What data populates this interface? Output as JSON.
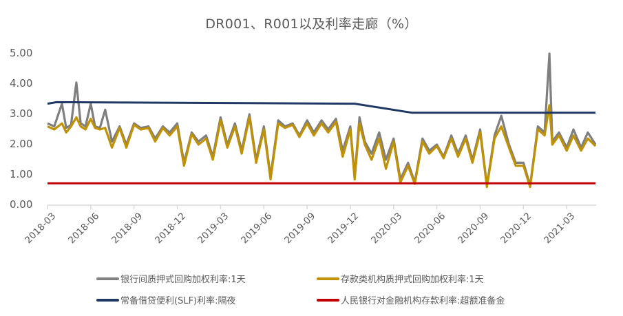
{
  "chart_data": {
    "type": "line",
    "title": "DR001、R001以及利率走廊（%）",
    "xlabel": "",
    "ylabel": "",
    "ylim": [
      0,
      5
    ],
    "yticks": [
      "0.00",
      "1.00",
      "2.00",
      "3.00",
      "4.00",
      "5.00"
    ],
    "xticks": [
      "2018-03",
      "2018-06",
      "2018-09",
      "2018-12",
      "2019-03",
      "2019-06",
      "2019-09",
      "2019-12",
      "2020-03",
      "2020-06",
      "2020-09",
      "2020-12",
      "2021-03"
    ],
    "grid": false,
    "legend_position": "bottom",
    "x_range": [
      "2018-03",
      "2021-05"
    ],
    "series": [
      {
        "name": "银行间质押式回购加权利率:1天",
        "color": "#7f7f7f",
        "x": [
          "2018-03",
          "2018-03-15",
          "2018-04",
          "2018-04-10",
          "2018-04-20",
          "2018-05",
          "2018-05-10",
          "2018-05-20",
          "2018-06",
          "2018-06-10",
          "2018-06-20",
          "2018-07",
          "2018-07-15",
          "2018-08",
          "2018-08-15",
          "2018-09",
          "2018-09-15",
          "2018-10",
          "2018-10-15",
          "2018-11",
          "2018-11-15",
          "2018-12",
          "2018-12-15",
          "2019-01",
          "2019-01-15",
          "2019-02",
          "2019-02-15",
          "2019-03",
          "2019-03-15",
          "2019-04",
          "2019-04-15",
          "2019-05",
          "2019-05-15",
          "2019-06",
          "2019-06-15",
          "2019-07",
          "2019-07-15",
          "2019-08",
          "2019-08-15",
          "2019-09",
          "2019-09-15",
          "2019-10",
          "2019-10-15",
          "2019-11",
          "2019-11-15",
          "2019-12",
          "2019-12-10",
          "2019-12-20",
          "2020-01",
          "2020-01-15",
          "2020-02",
          "2020-02-15",
          "2020-03",
          "2020-03-15",
          "2020-04",
          "2020-04-15",
          "2020-05",
          "2020-05-15",
          "2020-06",
          "2020-06-15",
          "2020-07",
          "2020-07-15",
          "2020-08",
          "2020-08-15",
          "2020-09",
          "2020-09-15",
          "2020-10",
          "2020-10-15",
          "2020-11",
          "2020-11-15",
          "2020-12",
          "2020-12-15",
          "2021-01",
          "2021-01-15",
          "2021-01-25",
          "2021-02",
          "2021-02-15",
          "2021-03",
          "2021-03-15",
          "2021-04",
          "2021-04-15",
          "2021-05"
        ],
        "values": [
          2.7,
          2.6,
          3.35,
          2.55,
          2.65,
          4.05,
          2.7,
          2.6,
          3.35,
          2.6,
          2.55,
          3.15,
          2.1,
          2.6,
          2.0,
          2.7,
          2.55,
          2.6,
          2.2,
          2.6,
          2.4,
          2.7,
          1.4,
          2.4,
          2.1,
          2.3,
          1.6,
          2.9,
          2.0,
          2.7,
          1.8,
          3.0,
          1.5,
          2.6,
          0.95,
          2.8,
          2.6,
          2.7,
          2.3,
          2.8,
          2.4,
          2.8,
          2.5,
          2.85,
          1.8,
          2.6,
          0.95,
          2.9,
          2.1,
          1.7,
          2.4,
          1.5,
          2.2,
          0.85,
          1.4,
          0.75,
          2.2,
          1.8,
          2.0,
          1.6,
          2.3,
          1.7,
          2.3,
          1.5,
          2.5,
          0.65,
          2.3,
          2.95,
          2.0,
          1.4,
          1.4,
          0.65,
          2.6,
          2.4,
          5.0,
          2.1,
          2.4,
          1.9,
          2.5,
          1.9,
          2.4,
          2.0
        ]
      },
      {
        "name": "存款类机构质押式回购加权利率:1天",
        "color": "#c09100",
        "x": [
          "2018-03",
          "2018-03-15",
          "2018-04",
          "2018-04-10",
          "2018-04-20",
          "2018-05",
          "2018-05-10",
          "2018-05-20",
          "2018-06",
          "2018-06-10",
          "2018-06-20",
          "2018-07",
          "2018-07-15",
          "2018-08",
          "2018-08-15",
          "2018-09",
          "2018-09-15",
          "2018-10",
          "2018-10-15",
          "2018-11",
          "2018-11-15",
          "2018-12",
          "2018-12-15",
          "2019-01",
          "2019-01-15",
          "2019-02",
          "2019-02-15",
          "2019-03",
          "2019-03-15",
          "2019-04",
          "2019-04-15",
          "2019-05",
          "2019-05-15",
          "2019-06",
          "2019-06-15",
          "2019-07",
          "2019-07-15",
          "2019-08",
          "2019-08-15",
          "2019-09",
          "2019-09-15",
          "2019-10",
          "2019-10-15",
          "2019-11",
          "2019-11-15",
          "2019-12",
          "2019-12-10",
          "2019-12-20",
          "2020-01",
          "2020-01-15",
          "2020-02",
          "2020-02-15",
          "2020-03",
          "2020-03-15",
          "2020-04",
          "2020-04-15",
          "2020-05",
          "2020-05-15",
          "2020-06",
          "2020-06-15",
          "2020-07",
          "2020-07-15",
          "2020-08",
          "2020-08-15",
          "2020-09",
          "2020-09-15",
          "2020-10",
          "2020-10-15",
          "2020-11",
          "2020-11-15",
          "2020-12",
          "2020-12-15",
          "2021-01",
          "2021-01-15",
          "2021-01-25",
          "2021-02",
          "2021-02-15",
          "2021-03",
          "2021-03-15",
          "2021-04",
          "2021-04-15",
          "2021-05"
        ],
        "values": [
          2.6,
          2.5,
          2.7,
          2.4,
          2.6,
          2.9,
          2.6,
          2.5,
          2.85,
          2.55,
          2.5,
          2.55,
          1.9,
          2.55,
          1.9,
          2.65,
          2.5,
          2.55,
          2.1,
          2.55,
          2.3,
          2.6,
          1.3,
          2.35,
          2.0,
          2.2,
          1.5,
          2.8,
          1.9,
          2.6,
          1.7,
          2.9,
          1.4,
          2.5,
          0.85,
          2.7,
          2.55,
          2.65,
          2.25,
          2.7,
          2.3,
          2.7,
          2.4,
          2.75,
          1.6,
          2.5,
          0.85,
          2.7,
          2.0,
          1.5,
          2.2,
          1.2,
          2.1,
          0.75,
          1.3,
          0.7,
          2.1,
          1.7,
          1.95,
          1.55,
          2.2,
          1.6,
          2.2,
          1.4,
          2.4,
          0.6,
          2.2,
          2.6,
          1.9,
          1.3,
          1.3,
          0.6,
          2.5,
          2.3,
          3.3,
          2.0,
          2.3,
          1.8,
          2.3,
          1.8,
          2.2,
          1.95
        ]
      },
      {
        "name": "常备借贷便利(SLF)利率:隔夜",
        "color": "#1f3864",
        "x": [
          "2018-03",
          "2018-03-20",
          "2019-12-10",
          "2020-04-10",
          "2021-05"
        ],
        "values": [
          3.35,
          3.4,
          3.35,
          3.05,
          3.05
        ]
      },
      {
        "name": "人民银行对金融机构存款利率:超额准备金",
        "color": "#c00000",
        "x": [
          "2018-03",
          "2021-05"
        ],
        "values": [
          0.72,
          0.72
        ]
      }
    ]
  },
  "legend": [
    {
      "label": "银行间质押式回购加权利率:1天",
      "color": "#7f7f7f"
    },
    {
      "label": "存款类机构质押式回购加权利率:1天",
      "color": "#c09100"
    },
    {
      "label": "常备借贷便利(SLF)利率:隔夜",
      "color": "#1f3864"
    },
    {
      "label": "人民银行对金融机构存款利率:超额准备金",
      "color": "#c00000"
    }
  ]
}
